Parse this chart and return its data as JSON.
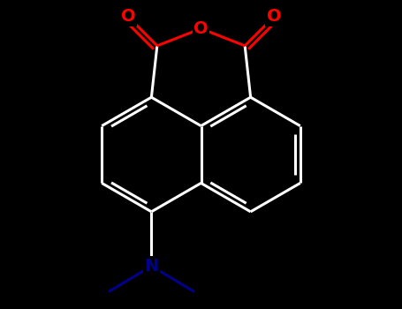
{
  "background_color": "#000000",
  "bond_draw_color": "#ffffff",
  "atom_O_color": "#ff0000",
  "atom_N_color": "#00008b",
  "figsize": [
    4.55,
    3.5
  ],
  "dpi": 100,
  "bond_lw": 2.2,
  "xlim": [
    -2.8,
    2.8
  ],
  "ylim": [
    -3.2,
    2.2
  ]
}
